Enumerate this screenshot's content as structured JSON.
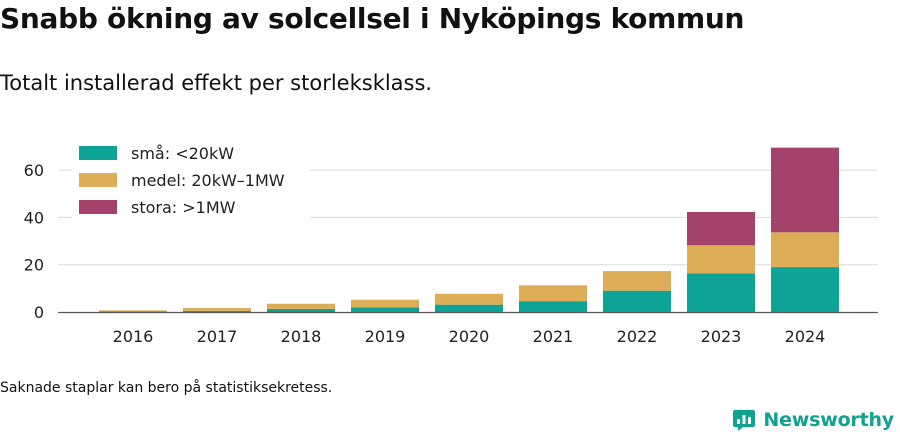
{
  "header": {
    "title": "Snabb ökning av solcellsel i Nyköpings kommun",
    "subtitle": "Totalt installerad effekt per storleksklass."
  },
  "footer": {
    "note": "Saknade staplar kan bero på statistiksekretess.",
    "brand": "Newsworthy"
  },
  "chart_data": {
    "type": "bar",
    "stacked": true,
    "categories": [
      "2016",
      "2017",
      "2018",
      "2019",
      "2020",
      "2021",
      "2022",
      "2023",
      "2024"
    ],
    "series": [
      {
        "name": "små: <20kW",
        "color": "#0ea397",
        "values": [
          0.2,
          0.5,
          1.3,
          2.0,
          3.1,
          4.6,
          9.0,
          16.3,
          19.0
        ]
      },
      {
        "name": "medel: 20kW–1MW",
        "color": "#ddad58",
        "values": [
          0.5,
          1.2,
          2.2,
          3.2,
          4.6,
          6.7,
          8.3,
          11.9,
          14.7
        ]
      },
      {
        "name": "stora: >1MW",
        "color": "#a5426b",
        "values": [
          0,
          0,
          0,
          0,
          0,
          0,
          0,
          14.1,
          35.8
        ]
      }
    ],
    "yticks": [
      0,
      20,
      40,
      60
    ],
    "ylim": [
      0,
      72
    ],
    "grid": true,
    "legend": "top-left"
  }
}
